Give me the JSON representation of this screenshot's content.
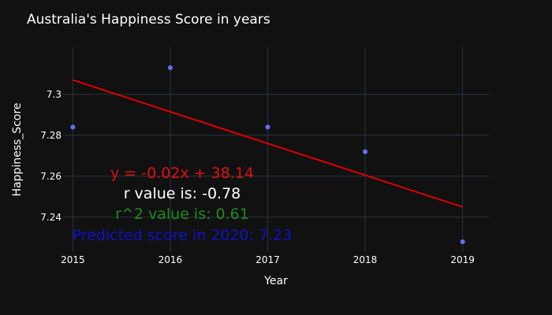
{
  "chart_data": {
    "type": "scatter",
    "title": "Australia's Happiness Score in years",
    "xlabel": "Year",
    "ylabel": "Happiness_Score",
    "x": [
      2015,
      2016,
      2017,
      2018,
      2019
    ],
    "series": [
      {
        "values": [
          7.284,
          7.313,
          7.284,
          7.272,
          7.228
        ],
        "color": "#636efa",
        "mode": "markers"
      }
    ],
    "trendline": {
      "x": [
        2015,
        2019
      ],
      "y": [
        7.307,
        7.245
      ],
      "color": "#dd0000"
    },
    "xlim": [
      2014.9,
      2019.27
    ],
    "ylim": [
      7.223,
      7.323
    ],
    "xticks": [
      "2015",
      "2016",
      "2017",
      "2018",
      "2019"
    ],
    "yticks": [
      "7.24",
      "7.26",
      "7.28",
      "7.3"
    ],
    "grid": true,
    "annotations": [
      {
        "text": "y = -0.02x + 38.14",
        "color": "#e01010"
      },
      {
        "text": "r value is: -0.78",
        "color": "#ffffff"
      },
      {
        "text": "r^2 value is: 0.61",
        "color": "#1f8a1f"
      },
      {
        "text": "Predicted score in 2020: 7.23",
        "color": "#1010cc"
      }
    ]
  },
  "colors": {
    "background": "#111111",
    "grid": "#283442",
    "text": "#ffffff"
  }
}
